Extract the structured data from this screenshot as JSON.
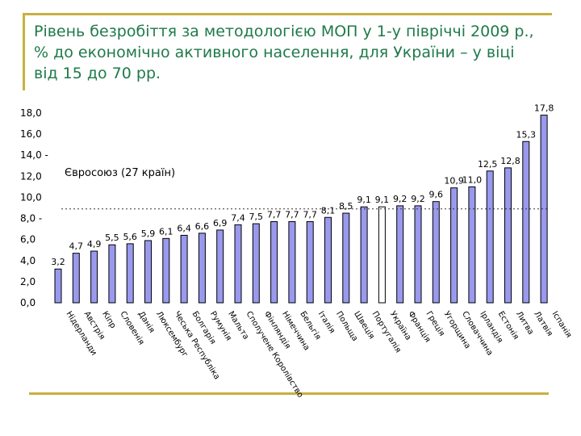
{
  "slide": {
    "title": "Рівень безробіття за методологією МОП у 1-у півріччі 2009 р., % до економічно активного населення, для України – у віці від 15 до 70 рр.",
    "accent_color": "#c8b040",
    "title_color": "#1f7a4a"
  },
  "chart_data": {
    "type": "bar",
    "categories": [
      "Нідерланди",
      "Австрія",
      "Кіпр",
      "Словенія",
      "Данія",
      "Люксембург",
      "Чеська Республіка",
      "Болгарія",
      "Румунія",
      "Мальта",
      "Сполучене Королівство",
      "Фінляндія",
      "Німеччина",
      "Бельгія",
      "Італія",
      "Польща",
      "Швеція",
      "Португалія",
      "Україна",
      "Франція",
      "Греція",
      "Угорщина",
      "Словаччина",
      "Ірландія",
      "Естонія",
      "Литва",
      "Латвія",
      "Іспанія"
    ],
    "values": [
      3.2,
      4.7,
      4.9,
      5.5,
      5.6,
      5.9,
      6.1,
      6.4,
      6.6,
      6.9,
      7.4,
      7.5,
      7.7,
      7.7,
      7.7,
      8.1,
      8.5,
      9.1,
      9.1,
      9.2,
      9.2,
      9.6,
      10.9,
      11.0,
      12.5,
      12.8,
      15.3,
      17.8
    ],
    "value_labels": [
      "3,2",
      "4,7",
      "4,9",
      "5,5",
      "5,6",
      "5,9",
      "6,1",
      "6,4",
      "6,6",
      "6,9",
      "7,4",
      "7,5",
      "7,7",
      "7,7",
      "7,7",
      "8,1",
      "8,5",
      "9,1",
      "9,1",
      "9,2",
      "9,2",
      "9,6",
      "10,9",
      "11,0",
      "12,5",
      "12,8",
      "15,3",
      "17,8"
    ],
    "highlight_index": 18,
    "reference_line": {
      "label": "Євросоюз (27 країн)",
      "value": 8.9
    },
    "yticks": [
      "0,0",
      "2,0",
      "4,0",
      "6,0",
      "8,0 -",
      "10,0",
      "12,0",
      "14,0 -",
      "16,0",
      "18,0"
    ],
    "ylim": [
      0,
      18
    ],
    "bar_color": "#9999ee",
    "highlight_color": "#ffffff",
    "grid": false,
    "legend": "none"
  }
}
